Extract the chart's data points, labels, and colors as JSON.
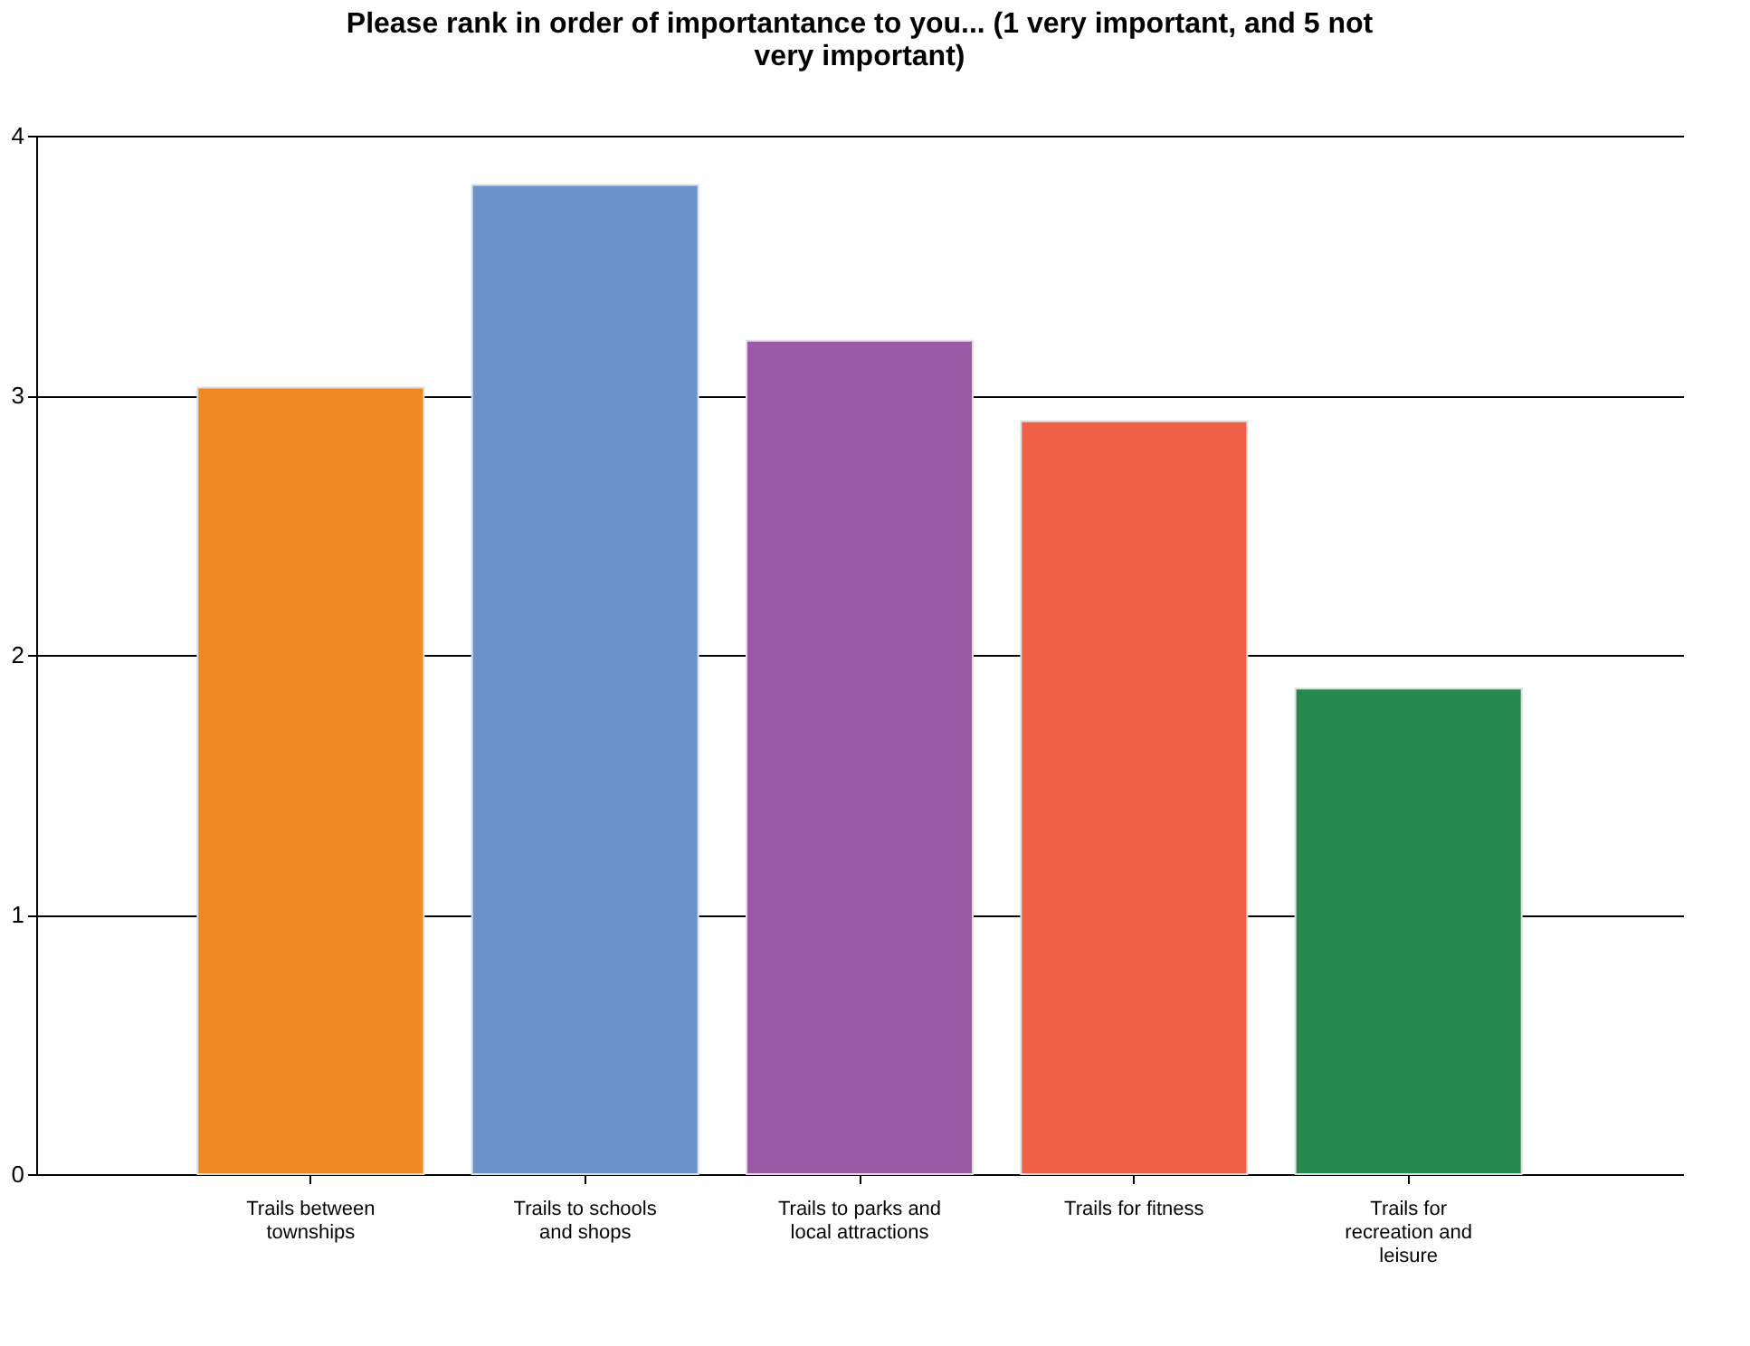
{
  "chart_data": {
    "type": "bar",
    "title": "Please rank in order of importantance to you... (1 very important, and 5 not very important)",
    "categories": [
      "Trails between townships",
      "Trails to schools and shops",
      "Trails to parks and local attractions",
      "Trails for fitness",
      "Trails for recreation and leisure"
    ],
    "values": [
      3.03,
      3.81,
      3.21,
      2.9,
      1.87
    ],
    "colors": [
      "#ef8a22",
      "#6a93cc",
      "#9b5aa6",
      "#ee6047",
      "#24894a"
    ],
    "ylim": [
      0,
      4
    ],
    "yticks": [
      0,
      1,
      2,
      3,
      4
    ],
    "grid": "y"
  }
}
